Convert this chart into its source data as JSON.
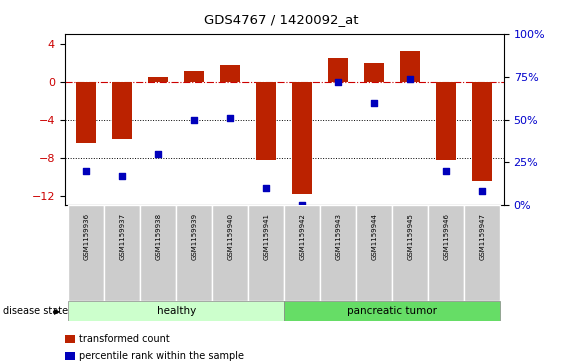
{
  "title": "GDS4767 / 1420092_at",
  "samples": [
    "GSM1159936",
    "GSM1159937",
    "GSM1159938",
    "GSM1159939",
    "GSM1159940",
    "GSM1159941",
    "GSM1159942",
    "GSM1159943",
    "GSM1159944",
    "GSM1159945",
    "GSM1159946",
    "GSM1159947"
  ],
  "bar_values": [
    -6.5,
    -6.0,
    0.5,
    1.2,
    1.8,
    -8.2,
    -11.8,
    2.5,
    2.0,
    3.3,
    -8.2,
    -10.5
  ],
  "pct_right": [
    20,
    17,
    30,
    50,
    51,
    10,
    0,
    72,
    60,
    74,
    20,
    8
  ],
  "bar_color": "#bb2200",
  "dot_color": "#0000bb",
  "ylim_left": [
    -13,
    5
  ],
  "ylim_right": [
    0,
    100
  ],
  "yticks_left": [
    4,
    0,
    -4,
    -8,
    -12
  ],
  "yticks_right": [
    100,
    75,
    50,
    25,
    0
  ],
  "hlines": [
    -4,
    -8
  ],
  "hline_zero_color": "#cc0000",
  "hline_color": "#000000",
  "groups": [
    {
      "label": "healthy",
      "start": 0,
      "end": 6,
      "color": "#ccffcc"
    },
    {
      "label": "pancreatic tumor",
      "start": 6,
      "end": 12,
      "color": "#66dd66"
    }
  ],
  "group_label": "disease state",
  "bar_width": 0.55,
  "background_color": "#ffffff",
  "tick_label_color_left": "#cc0000",
  "tick_label_color_right": "#0000cc",
  "legend_items": [
    {
      "label": "transformed count",
      "color": "#bb2200"
    },
    {
      "label": "percentile rank within the sample",
      "color": "#0000bb"
    }
  ],
  "label_bg_color": "#cccccc",
  "label_border_color": "#ffffff"
}
